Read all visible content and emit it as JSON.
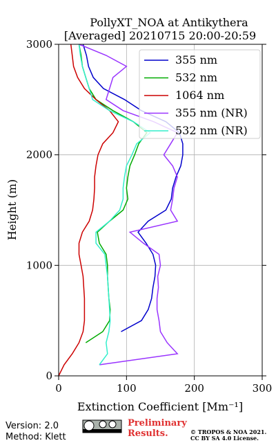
{
  "chart_data": {
    "type": "line",
    "title": [
      "PollyXT_NOA at Antikythera",
      "[Averaged] 20210715 20:00-20:59"
    ],
    "x_label": "Extinction Coefficient [Mm⁻¹]",
    "y_label": "Height (m)",
    "y": [
      0,
      100,
      200,
      300,
      400,
      500,
      600,
      700,
      800,
      900,
      1000,
      1100,
      1200,
      1300,
      1400,
      1500,
      1600,
      1700,
      1800,
      1900,
      2000,
      2100,
      2200,
      2300,
      2400,
      2500,
      2600,
      2700,
      2800,
      2900,
      3000
    ],
    "series": [
      {
        "name": "355 nm",
        "color": "#0000cc",
        "values": [
          null,
          null,
          null,
          null,
          92,
          122,
          132,
          137,
          139,
          142,
          143,
          139,
          129,
          117,
          132,
          158,
          166,
          168,
          173,
          180,
          183,
          183,
          178,
          158,
          122,
          97,
          66,
          51,
          44,
          41,
          36
        ]
      },
      {
        "name": "532 nm",
        "color": "#00aa00",
        "values": [
          null,
          null,
          null,
          40,
          65,
          75,
          76,
          74,
          73,
          72,
          72,
          70,
          60,
          57,
          75,
          95,
          102,
          100,
          102,
          105,
          112,
          118,
          130,
          110,
          80,
          55,
          45,
          40,
          35,
          33,
          30
        ]
      },
      {
        "name": "1064 nm",
        "color": "#cc0000",
        "values": [
          0,
          8,
          20,
          30,
          36,
          38,
          38,
          38,
          37,
          36,
          33,
          30,
          30,
          35,
          45,
          50,
          52,
          53,
          53,
          55,
          58,
          65,
          80,
          88,
          75,
          55,
          38,
          28,
          22,
          20,
          18
        ]
      },
      {
        "name": "355 nm (NR)",
        "color": "#9933ff",
        "values": [
          null,
          60,
          175,
          160,
          150,
          148,
          145,
          145,
          147,
          146,
          150,
          148,
          125,
          105,
          175,
          165,
          168,
          170,
          175,
          168,
          155,
          165,
          175,
          140,
          95,
          70,
          75,
          80,
          100,
          70,
          30
        ]
      },
      {
        "name": "532 nm (NR)",
        "color": "#33eecc",
        "values": [
          null,
          60,
          72,
          70,
          74,
          76,
          75,
          74,
          73,
          72,
          70,
          68,
          55,
          55,
          75,
          90,
          95,
          95,
          97,
          100,
          108,
          115,
          135,
          110,
          75,
          50,
          45,
          40,
          35,
          32,
          30
        ]
      }
    ],
    "xlim": [
      0,
      300
    ],
    "xticks": [
      0,
      100,
      200,
      300
    ],
    "ylim": [
      0,
      3000
    ],
    "yticks": [
      0,
      1000,
      2000,
      3000
    ],
    "grid": true,
    "legend": "upper right",
    "footer": {
      "version": "Version: 2.0",
      "method": "Method: Klett",
      "status": [
        "Preliminary",
        "Results."
      ],
      "copyright": [
        "© TROPOS & NOA 2021.",
        "CC BY SA 4.0 License."
      ]
    }
  }
}
